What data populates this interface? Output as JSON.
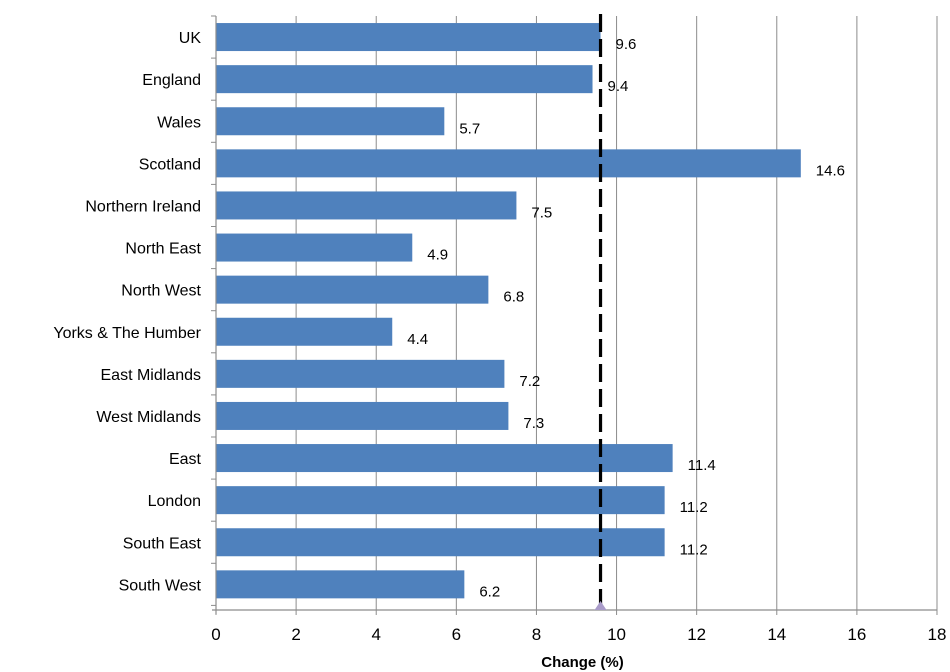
{
  "chart_data": {
    "type": "bar",
    "orientation": "horizontal",
    "categories": [
      "UK",
      "England",
      "Wales",
      "Scotland",
      "Northern Ireland",
      "North East",
      "North West",
      "Yorks & The Humber",
      "East Midlands",
      "West Midlands",
      "East",
      "London",
      "South East",
      "South West"
    ],
    "values": [
      9.6,
      9.4,
      5.7,
      14.6,
      7.5,
      4.9,
      6.8,
      4.4,
      7.2,
      7.3,
      11.4,
      11.2,
      11.2,
      6.2
    ],
    "value_labels": [
      "9.6",
      "9.4",
      "5.7",
      "14.6",
      "7.5",
      "4.9",
      "6.8",
      "4.4",
      "7.2",
      "7.3",
      "11.4",
      "11.2",
      "11.2",
      "6.2"
    ],
    "title": "",
    "xlabel": "Change (%)",
    "ylabel": "",
    "xlim": [
      0,
      18
    ],
    "x_ticks": [
      0,
      2,
      4,
      6,
      8,
      10,
      12,
      14,
      16,
      18
    ],
    "grid": "vertical",
    "reference_line": {
      "value": 9.6,
      "style": "dashed",
      "color": "#000000"
    },
    "reference_marker_color": "#a99bc9",
    "bar_color": "#4f81bd"
  }
}
